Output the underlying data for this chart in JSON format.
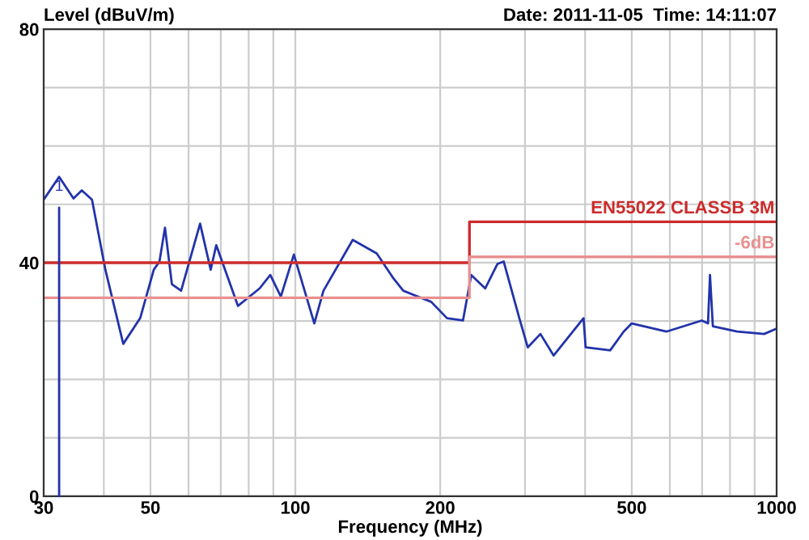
{
  "chart_data": {
    "type": "line",
    "log": "x",
    "ylabel": "Level (dBuV/m)",
    "title": "Date: 2011-11-05  Time: 14:11:07",
    "xlabel": "Frequency (MHz)",
    "xlim": [
      30,
      1000
    ],
    "ylim": [
      0,
      80
    ],
    "xticks": [
      30,
      {
        "value": 40,
        "label": null
      },
      50,
      {
        "value": 60,
        "label": null
      },
      {
        "value": 70,
        "label": null
      },
      {
        "value": 80,
        "label": null
      },
      {
        "value": 90,
        "label": null
      },
      100,
      200,
      {
        "value": 300,
        "label": null
      },
      {
        "value": 400,
        "label": null
      },
      500,
      {
        "value": 600,
        "label": null
      },
      {
        "value": 700,
        "label": null
      },
      {
        "value": 800,
        "label": null
      },
      {
        "value": 900,
        "label": null
      },
      1000
    ],
    "yticks": [
      0,
      {
        "value": 10,
        "label": null
      },
      {
        "value": 20,
        "label": null
      },
      {
        "value": 30,
        "label": null
      },
      40,
      {
        "value": 50,
        "label": null
      },
      {
        "value": 60,
        "label": null
      },
      {
        "value": 70,
        "label": null
      },
      80
    ],
    "grid": true,
    "legend": false,
    "marker": "none",
    "line_style": "solid",
    "annotations": [
      {
        "text": "1",
        "x": 32.3,
        "y": 53
      }
    ],
    "series": [
      {
        "color": "#2233aa",
        "x": [
          30,
          32.3,
          34.6,
          36.0,
          37.8,
          40.3,
          43.9,
          47.6,
          50.8,
          52.2,
          53.6,
          55.4,
          57.9,
          63.4,
          66.7,
          68.5,
          76.0,
          84.3,
          88.7,
          93.3,
          99.3,
          109.5,
          114.4,
          131.6,
          147.6,
          159.3,
          167.6,
          191.5,
          206.6,
          223,
          232,
          248,
          263,
          271,
          292,
          304,
          323,
          344,
          397,
          401,
          451,
          481,
          500,
          590,
          699,
          720,
          727,
          737,
          828,
          942,
          1000
        ],
        "values": [
          50.8,
          54.7,
          51,
          52.4,
          50.8,
          38.8,
          26.1,
          30.5,
          38.8,
          40.2,
          46.0,
          36.3,
          35.2,
          46.7,
          38.8,
          43.0,
          32.6,
          35.6,
          37.9,
          34.2,
          41.4,
          29.6,
          35.2,
          43.9,
          41.6,
          37.5,
          35.2,
          33.3,
          30.5,
          30.1,
          37.9,
          35.6,
          39.8,
          40.2,
          30.5,
          25.5,
          27.8,
          24.1,
          30.5,
          25.5,
          25.0,
          28.2,
          29.6,
          28.2,
          30.1,
          29.6,
          37.9,
          29.1,
          28.2,
          27.8,
          28.7
        ]
      },
      {
        "name": "EN55022 CLASSB 3M",
        "type": "step",
        "color": "#cc2b2b",
        "x": [
          30,
          230,
          1000
        ],
        "values": [
          40,
          47,
          47
        ]
      },
      {
        "name": "-6dB",
        "type": "step",
        "color": "#e89090",
        "x": [
          30,
          230,
          1000
        ],
        "values": [
          34,
          41,
          41
        ]
      }
    ]
  }
}
